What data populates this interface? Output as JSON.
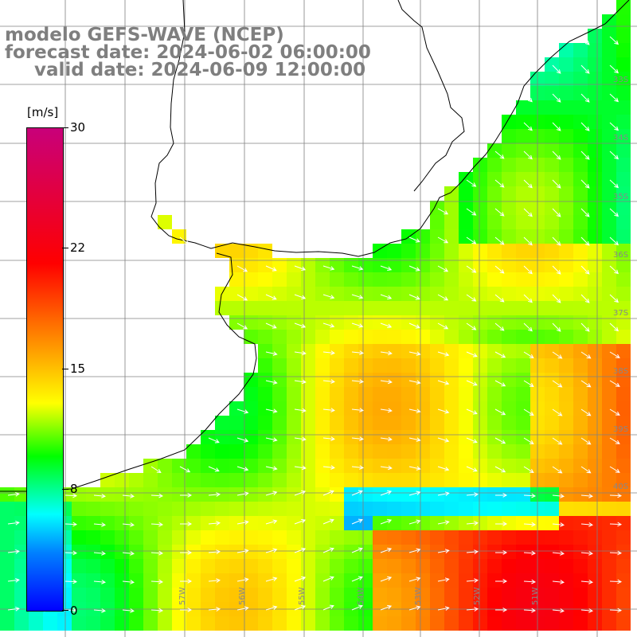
{
  "title": {
    "model": "modelo GEFS-WAVE (NCEP)",
    "forecast": "forecast date: 2024-06-02 06:00:00",
    "valid": "valid date: 2024-06-09 12:00:00"
  },
  "colorbar": {
    "unit": "[m/s]",
    "ticks": [
      {
        "label": "30",
        "value": 30
      },
      {
        "label": "22",
        "value": 22
      },
      {
        "label": "15",
        "value": 15
      },
      {
        "label": "8",
        "value": 8
      },
      {
        "label": "0",
        "value": 0
      }
    ],
    "colors": [
      "#c8007a",
      "#ff0000",
      "#ff8c00",
      "#ffff00",
      "#00ff00",
      "#00ffff",
      "#0080ff",
      "#0000ff"
    ]
  },
  "axes": {
    "lat_labels": [
      "33S",
      "34S",
      "35S",
      "36S",
      "37S",
      "38S",
      "39S",
      "40S"
    ],
    "lon_labels": [
      "57W",
      "56W",
      "55W",
      "54W",
      "53W",
      "52W",
      "51W"
    ]
  },
  "colors": {
    "land": "#ffffff",
    "grid": "#808080",
    "coast": "#000000",
    "title": "#7f7f7f",
    "arrow": "#ffffff"
  }
}
